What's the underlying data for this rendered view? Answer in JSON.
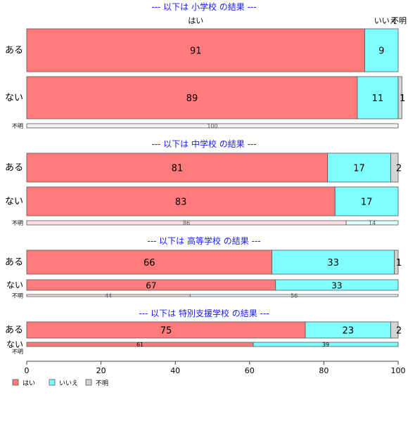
{
  "chart_data": {
    "type": "bar",
    "orientation": "horizontal-stacked-100",
    "xlim": [
      0,
      100
    ],
    "x_ticks": [
      "0",
      "20",
      "40",
      "60",
      "80",
      "100"
    ],
    "grid": false,
    "legend_position": "bottom-left",
    "categories": [
      "はい",
      "いいえ",
      "不明"
    ],
    "colors": {
      "はい": "#ff7b7b",
      "いいえ": "#80ffff",
      "不明": "#d4d4d4"
    },
    "column_labels": [
      "はい",
      "いいえ",
      "不明"
    ],
    "groups": [
      {
        "title": "--- 以下は 小学校 の結果 ---",
        "rows": [
          {
            "label": "ある",
            "values": [
              91,
              9,
              0
            ],
            "value_labels": [
              "91",
              "9",
              ""
            ]
          },
          {
            "label": "ない",
            "values": [
              89,
              11,
              1
            ],
            "value_labels": [
              "89",
              "11",
              "1"
            ]
          },
          {
            "label": "不明",
            "values": [
              0,
              0,
              100
            ],
            "value_labels": [
              "",
              "",
              "100"
            ]
          }
        ]
      },
      {
        "title": "--- 以下は 中学校 の結果 ---",
        "rows": [
          {
            "label": "ある",
            "values": [
              81,
              17,
              2
            ],
            "value_labels": [
              "81",
              "17",
              "2"
            ]
          },
          {
            "label": "ない",
            "values": [
              83,
              17,
              0
            ],
            "value_labels": [
              "83",
              "17",
              ""
            ]
          },
          {
            "label": "不明",
            "values": [
              86,
              14,
              0
            ],
            "value_labels": [
              "86",
              "14",
              ""
            ]
          }
        ]
      },
      {
        "title": "--- 以下は 高等学校 の結果 ---",
        "rows": [
          {
            "label": "ある",
            "values": [
              66,
              33,
              1
            ],
            "value_labels": [
              "66",
              "33",
              "1"
            ]
          },
          {
            "label": "ない",
            "values": [
              67,
              33,
              0
            ],
            "value_labels": [
              "67",
              "33",
              ""
            ]
          },
          {
            "label": "不明",
            "values": [
              44,
              56,
              0
            ],
            "value_labels": [
              "44",
              "56",
              ""
            ]
          }
        ]
      },
      {
        "title": "--- 以下は 特別支援学校 の結果 ---",
        "rows": [
          {
            "label": "ある",
            "values": [
              75,
              23,
              2
            ],
            "value_labels": [
              "75",
              "23",
              "2"
            ]
          },
          {
            "label": "ない",
            "values": [
              61,
              39,
              0
            ],
            "value_labels": [
              "61",
              "39",
              ""
            ]
          },
          {
            "label": "不明",
            "values": [
              0,
              0,
              0
            ],
            "value_labels": [
              "",
              "",
              ""
            ]
          }
        ]
      }
    ],
    "legend": [
      "はい",
      "いいえ",
      "不明"
    ]
  }
}
